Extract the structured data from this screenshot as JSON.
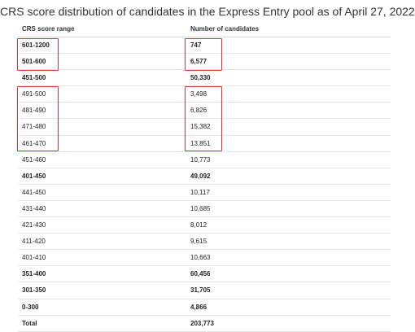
{
  "title": "CRS score distribution of candidates in the Express Entry pool as of April 27, 2022",
  "columns": [
    "CRS score range",
    "Number of candidates"
  ],
  "rows": [
    {
      "range": "601-1200",
      "count": "747",
      "bold": true
    },
    {
      "range": "501-600",
      "count": "6,577",
      "bold": true
    },
    {
      "range": "451-500",
      "count": "50,330",
      "bold": true
    },
    {
      "range": "491-500",
      "count": "3,498",
      "bold": false
    },
    {
      "range": "481-490",
      "count": "6,826",
      "bold": false
    },
    {
      "range": "471-480",
      "count": "15,382",
      "bold": false
    },
    {
      "range": "461-470",
      "count": "13,851",
      "bold": false
    },
    {
      "range": "451-460",
      "count": "10,773",
      "bold": false
    },
    {
      "range": "401-450",
      "count": "49,092",
      "bold": true
    },
    {
      "range": "441-450",
      "count": "10,117",
      "bold": false
    },
    {
      "range": "431-440",
      "count": "10,685",
      "bold": false
    },
    {
      "range": "421-430",
      "count": "8,012",
      "bold": false
    },
    {
      "range": "411-420",
      "count": "9,615",
      "bold": false
    },
    {
      "range": "401-410",
      "count": "10,663",
      "bold": false
    },
    {
      "range": "351-400",
      "count": "60,456",
      "bold": true
    },
    {
      "range": "301-350",
      "count": "31,705",
      "bold": true
    },
    {
      "range": "0-300",
      "count": "4,866",
      "bold": true
    },
    {
      "range": "Total",
      "count": "203,773",
      "bold": true
    }
  ],
  "highlight_color": "#d9382c"
}
